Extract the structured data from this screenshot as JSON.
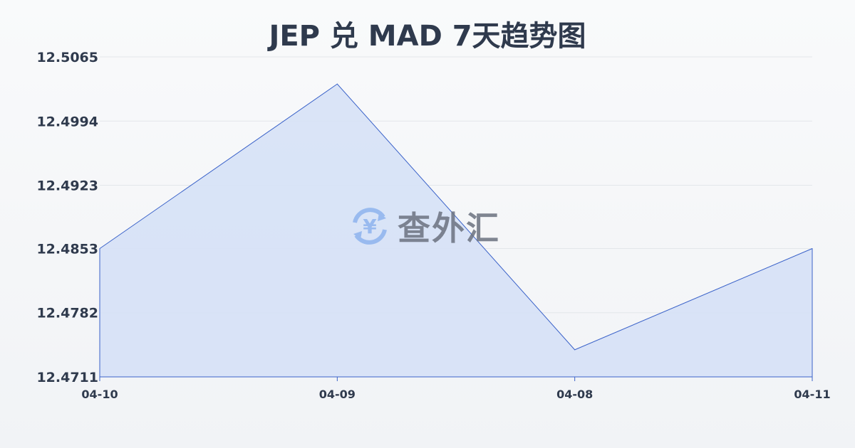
{
  "chart_data": {
    "type": "area",
    "title": "JEP 兑 MAD 7天趋势图",
    "categories": [
      "04-10",
      "04-09",
      "04-08",
      "04-11"
    ],
    "series": [
      {
        "values": [
          12.4853,
          12.5035,
          12.4741,
          12.4853
        ]
      }
    ],
    "yticks": [
      "12.4711",
      "12.4782",
      "12.4853",
      "12.4923",
      "12.4994",
      "12.5065"
    ],
    "ylim": [
      12.4711,
      12.5065
    ],
    "grid": true,
    "colors": {
      "line": "#3a62c9",
      "fill": "#d6e1f6",
      "text": "#2f3a4d",
      "grid": "#e3e6ea"
    }
  },
  "watermark": {
    "text": "查外汇",
    "icon": "yen-exchange-icon"
  }
}
